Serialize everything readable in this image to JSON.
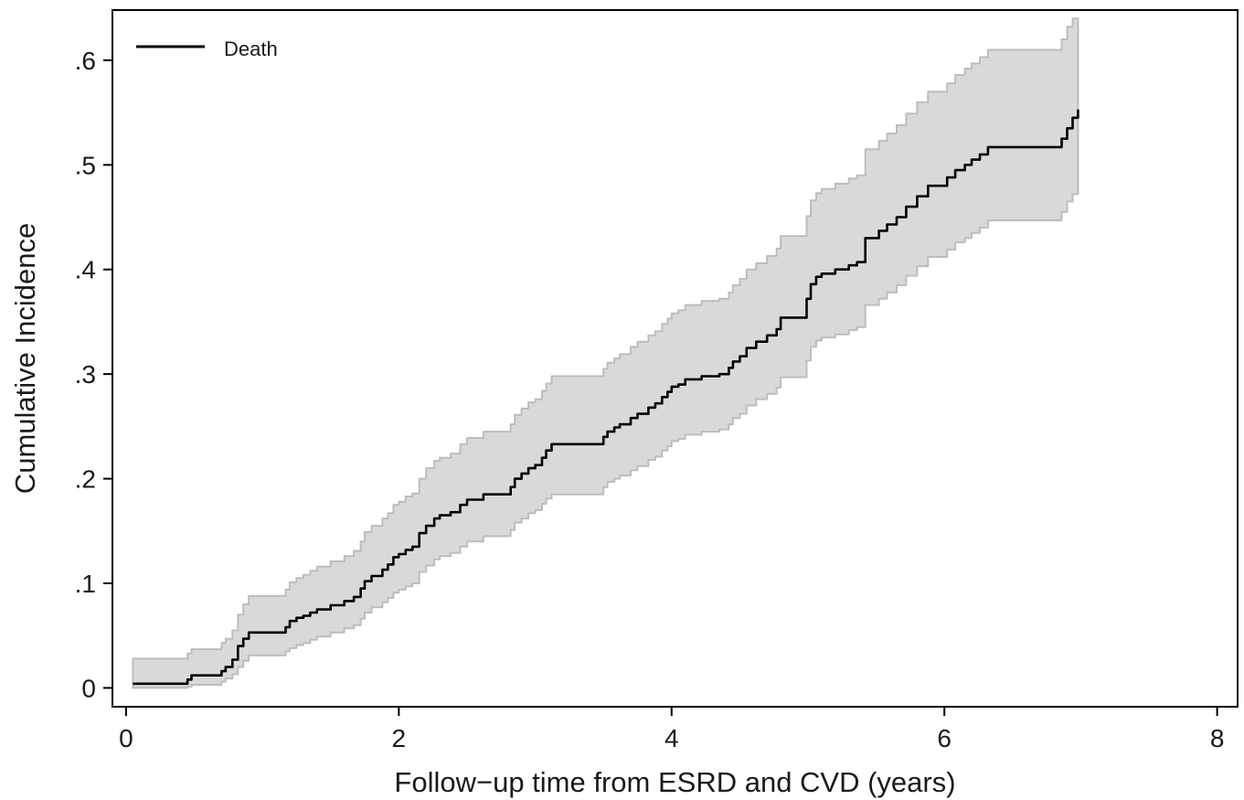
{
  "chart_data": {
    "type": "line",
    "title": "",
    "xlabel": "Follow−up time from ESRD and CVD (years)",
    "ylabel": "Cumulative Incidence",
    "xlim": [
      -0.1,
      8.15
    ],
    "ylim": [
      -0.018,
      0.648
    ],
    "xticks": [
      0,
      2,
      4,
      6,
      8
    ],
    "xtick_labels": [
      "0",
      "2",
      "4",
      "6",
      "8"
    ],
    "yticks": [
      0,
      0.1,
      0.2,
      0.3,
      0.4,
      0.5,
      0.6
    ],
    "ytick_labels": [
      "0",
      ".1",
      ".2",
      ".3",
      ".4",
      ".5",
      ".6"
    ],
    "grid": false,
    "legend_position": "top-left",
    "colors": {
      "line": "#000000",
      "band_fill": "#d9d9d9",
      "band_edge": "#bdbdbd",
      "frame": "#000000"
    },
    "series": [
      {
        "name": "Death",
        "step": true,
        "x": [
          0.05,
          0.45,
          0.48,
          0.7,
          0.73,
          0.78,
          0.82,
          0.86,
          0.9,
          0.95,
          1.17,
          1.2,
          1.25,
          1.3,
          1.35,
          1.4,
          1.5,
          1.6,
          1.67,
          1.72,
          1.75,
          1.8,
          1.88,
          1.92,
          1.96,
          2.0,
          2.05,
          2.1,
          2.15,
          2.2,
          2.23,
          2.26,
          2.3,
          2.38,
          2.45,
          2.5,
          2.55,
          2.62,
          2.68,
          2.82,
          2.85,
          2.9,
          2.95,
          3.0,
          3.05,
          3.08,
          3.12,
          3.5,
          3.53,
          3.58,
          3.62,
          3.7,
          3.75,
          3.83,
          3.88,
          3.93,
          3.97,
          4.0,
          4.05,
          4.1,
          4.15,
          4.22,
          4.35,
          4.42,
          4.45,
          4.5,
          4.55,
          4.62,
          4.7,
          4.77,
          4.8,
          4.96,
          4.99,
          5.02,
          5.06,
          5.1,
          5.2,
          5.3,
          5.36,
          5.42,
          5.52,
          5.58,
          5.65,
          5.72,
          5.8,
          5.88,
          5.92,
          6.02,
          6.08,
          6.15,
          6.2,
          6.26,
          6.32,
          6.82,
          6.86,
          6.9,
          6.94,
          6.98
        ],
        "y": [
          0.004,
          0.008,
          0.012,
          0.016,
          0.02,
          0.027,
          0.04,
          0.047,
          0.053,
          0.053,
          0.058,
          0.064,
          0.067,
          0.069,
          0.072,
          0.075,
          0.079,
          0.083,
          0.087,
          0.095,
          0.102,
          0.107,
          0.113,
          0.118,
          0.125,
          0.128,
          0.132,
          0.135,
          0.148,
          0.155,
          0.155,
          0.162,
          0.165,
          0.168,
          0.175,
          0.18,
          0.18,
          0.185,
          0.185,
          0.192,
          0.2,
          0.205,
          0.21,
          0.213,
          0.22,
          0.227,
          0.233,
          0.24,
          0.245,
          0.249,
          0.252,
          0.258,
          0.262,
          0.268,
          0.272,
          0.278,
          0.283,
          0.288,
          0.29,
          0.295,
          0.295,
          0.298,
          0.3,
          0.306,
          0.312,
          0.317,
          0.325,
          0.331,
          0.337,
          0.343,
          0.354,
          0.354,
          0.372,
          0.386,
          0.393,
          0.396,
          0.4,
          0.404,
          0.407,
          0.43,
          0.437,
          0.443,
          0.45,
          0.46,
          0.47,
          0.48,
          0.48,
          0.488,
          0.495,
          0.5,
          0.505,
          0.51,
          0.517,
          0.517,
          0.525,
          0.535,
          0.545,
          0.553
        ],
        "ci_lower": [
          0.0,
          0.001,
          0.003,
          0.006,
          0.009,
          0.013,
          0.02,
          0.026,
          0.031,
          0.031,
          0.035,
          0.038,
          0.041,
          0.043,
          0.046,
          0.049,
          0.053,
          0.057,
          0.06,
          0.066,
          0.072,
          0.077,
          0.082,
          0.086,
          0.091,
          0.094,
          0.097,
          0.1,
          0.111,
          0.117,
          0.117,
          0.123,
          0.126,
          0.129,
          0.135,
          0.14,
          0.14,
          0.145,
          0.145,
          0.151,
          0.158,
          0.162,
          0.167,
          0.17,
          0.176,
          0.181,
          0.185,
          0.192,
          0.197,
          0.2,
          0.203,
          0.208,
          0.212,
          0.218,
          0.221,
          0.227,
          0.231,
          0.236,
          0.238,
          0.242,
          0.242,
          0.245,
          0.247,
          0.252,
          0.258,
          0.262,
          0.27,
          0.276,
          0.281,
          0.287,
          0.297,
          0.297,
          0.313,
          0.326,
          0.332,
          0.335,
          0.338,
          0.342,
          0.345,
          0.366,
          0.372,
          0.378,
          0.385,
          0.394,
          0.403,
          0.412,
          0.412,
          0.419,
          0.426,
          0.43,
          0.435,
          0.44,
          0.447,
          0.447,
          0.455,
          0.465,
          0.472,
          0.478
        ],
        "ci_upper": [
          0.028,
          0.033,
          0.037,
          0.043,
          0.047,
          0.055,
          0.07,
          0.08,
          0.088,
          0.088,
          0.094,
          0.101,
          0.105,
          0.108,
          0.112,
          0.116,
          0.121,
          0.126,
          0.131,
          0.14,
          0.149,
          0.155,
          0.162,
          0.167,
          0.175,
          0.178,
          0.183,
          0.186,
          0.2,
          0.21,
          0.21,
          0.217,
          0.22,
          0.224,
          0.233,
          0.239,
          0.239,
          0.245,
          0.245,
          0.252,
          0.261,
          0.267,
          0.273,
          0.276,
          0.284,
          0.291,
          0.298,
          0.305,
          0.311,
          0.315,
          0.319,
          0.326,
          0.331,
          0.337,
          0.341,
          0.348,
          0.353,
          0.358,
          0.361,
          0.366,
          0.366,
          0.37,
          0.372,
          0.378,
          0.385,
          0.391,
          0.4,
          0.406,
          0.413,
          0.42,
          0.432,
          0.432,
          0.451,
          0.466,
          0.473,
          0.477,
          0.482,
          0.487,
          0.49,
          0.515,
          0.523,
          0.53,
          0.538,
          0.549,
          0.56,
          0.57,
          0.57,
          0.578,
          0.586,
          0.592,
          0.597,
          0.603,
          0.61,
          0.61,
          0.62,
          0.632,
          0.64,
          0.628
        ]
      }
    ]
  }
}
